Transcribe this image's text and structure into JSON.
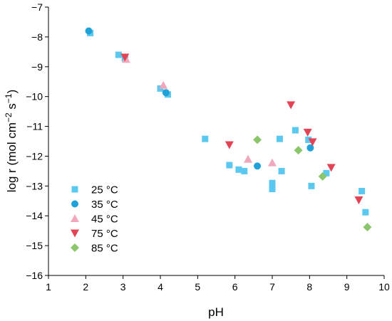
{
  "chart_data": {
    "type": "scatter",
    "title": "",
    "xlabel": "pH",
    "ylabel": "log r (mol cm⁻² s⁻¹)",
    "ylabel_parts": [
      "log r (mol cm",
      "−2",
      " s",
      "−1",
      ")"
    ],
    "xlim": [
      1,
      10
    ],
    "ylim": [
      -16,
      -7
    ],
    "xticks": [
      "1",
      "2",
      "3",
      "4",
      "5",
      "6",
      "7",
      "8",
      "9",
      "10"
    ],
    "yticks": [
      "−16",
      "−15",
      "−14",
      "−13",
      "−12",
      "−11",
      "−10",
      "−9",
      "−8",
      "−7"
    ],
    "grid": false,
    "legend_position": "bottom-left",
    "series": [
      {
        "name": "25 °C",
        "marker": "square",
        "color": "#5bc8ef",
        "points": [
          [
            2.12,
            -7.87
          ],
          [
            2.88,
            -8.6
          ],
          [
            3.05,
            -8.72
          ],
          [
            4.0,
            -9.73
          ],
          [
            4.2,
            -9.93
          ],
          [
            5.2,
            -11.42
          ],
          [
            5.85,
            -12.3
          ],
          [
            6.1,
            -12.45
          ],
          [
            6.25,
            -12.5
          ],
          [
            7.0,
            -12.9
          ],
          [
            7.0,
            -13.1
          ],
          [
            7.2,
            -11.42
          ],
          [
            7.25,
            -12.5
          ],
          [
            7.62,
            -11.13
          ],
          [
            7.97,
            -11.45
          ],
          [
            8.05,
            -13.0
          ],
          [
            8.45,
            -12.57
          ],
          [
            9.4,
            -13.17
          ],
          [
            9.5,
            -13.88
          ]
        ]
      },
      {
        "name": "35 °C",
        "marker": "circle",
        "color": "#1ea2d8",
        "points": [
          [
            2.08,
            -7.8
          ],
          [
            4.15,
            -9.87
          ],
          [
            6.6,
            -12.33
          ],
          [
            8.02,
            -11.72
          ]
        ]
      },
      {
        "name": "45 °C",
        "marker": "triangle-up",
        "color": "#f2a8bc",
        "points": [
          [
            3.08,
            -8.75
          ],
          [
            4.08,
            -9.62
          ],
          [
            6.35,
            -12.1
          ],
          [
            7.0,
            -12.22
          ]
        ]
      },
      {
        "name": "75 °C",
        "marker": "triangle-down",
        "color": "#e24455",
        "points": [
          [
            3.05,
            -8.68
          ],
          [
            5.85,
            -11.62
          ],
          [
            7.5,
            -10.28
          ],
          [
            7.95,
            -11.2
          ],
          [
            8.08,
            -11.52
          ],
          [
            8.58,
            -12.38
          ],
          [
            9.32,
            -13.47
          ]
        ]
      },
      {
        "name": "85 °C",
        "marker": "diamond",
        "color": "#8cc66c",
        "points": [
          [
            6.6,
            -11.45
          ],
          [
            7.7,
            -11.8
          ],
          [
            8.35,
            -12.68
          ],
          [
            9.55,
            -14.38
          ]
        ]
      }
    ]
  }
}
